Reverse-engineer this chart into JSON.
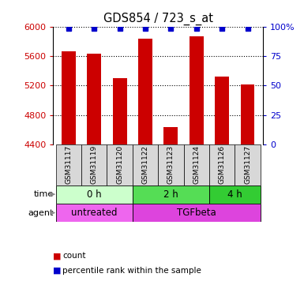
{
  "title": "GDS854 / 723_s_at",
  "samples": [
    "GSM31117",
    "GSM31119",
    "GSM31120",
    "GSM31122",
    "GSM31123",
    "GSM31124",
    "GSM31126",
    "GSM31127"
  ],
  "counts": [
    5670,
    5630,
    5300,
    5840,
    4640,
    5870,
    5320,
    5220
  ],
  "ymin": 4400,
  "ymax": 6000,
  "yticks": [
    4400,
    4800,
    5200,
    5600,
    6000
  ],
  "right_yticks": [
    0,
    25,
    50,
    75,
    100
  ],
  "right_yticklabels": [
    "0",
    "25",
    "50",
    "75",
    "100%"
  ],
  "bar_color": "#cc0000",
  "dot_color": "#0000cc",
  "bar_width": 0.55,
  "time_groups": [
    {
      "label": "0 h",
      "start": 0,
      "end": 3,
      "color": "#ccffcc"
    },
    {
      "label": "2 h",
      "start": 3,
      "end": 6,
      "color": "#55dd55"
    },
    {
      "label": "4 h",
      "start": 6,
      "end": 8,
      "color": "#33cc33"
    }
  ],
  "agent_groups": [
    {
      "label": "untreated",
      "start": 0,
      "end": 3,
      "color": "#ee66ee"
    },
    {
      "label": "TGFbeta",
      "start": 3,
      "end": 8,
      "color": "#dd44dd"
    }
  ],
  "bg_color": "#d8d8d8",
  "legend_count_color": "#cc0000",
  "legend_dot_color": "#0000cc"
}
